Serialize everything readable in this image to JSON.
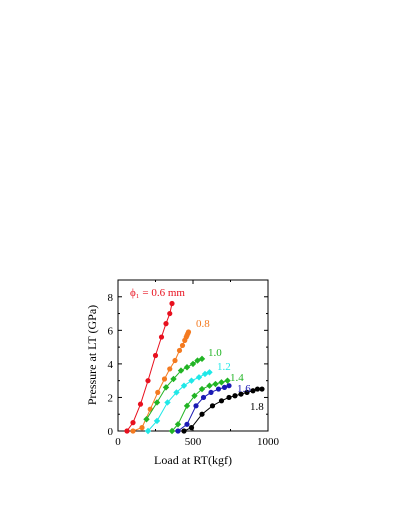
{
  "chart_data": {
    "type": "scatter",
    "xlabel": "Load at RT(kgf)",
    "ylabel": "Pressure at LT (GPa)",
    "xlim": [
      0,
      1000
    ],
    "ylim": [
      0,
      9
    ],
    "x_ticks": [
      "0",
      "500",
      "1000"
    ],
    "y_ticks": [
      "0",
      "2",
      "4",
      "6",
      "8"
    ],
    "grid": false,
    "legend": "inline labels at series ends",
    "series": [
      {
        "name": "ϕ₁ = 0.6 mm",
        "color": "#e8101e",
        "marker": "circle",
        "x": [
          60,
          100,
          150,
          200,
          250,
          290,
          320,
          345,
          360
        ],
        "y": [
          0.0,
          0.5,
          1.6,
          3.0,
          4.5,
          5.6,
          6.4,
          7.0,
          7.6
        ]
      },
      {
        "name": "0.8",
        "color": "#f47a20",
        "marker": "circle",
        "x": [
          100,
          160,
          215,
          265,
          310,
          345,
          380,
          410,
          430,
          445,
          455,
          460,
          465,
          470
        ],
        "y": [
          0.0,
          0.2,
          1.3,
          2.3,
          3.1,
          3.7,
          4.2,
          4.8,
          5.1,
          5.4,
          5.6,
          5.7,
          5.8,
          5.9
        ]
      },
      {
        "name": "1.0",
        "color": "#21b424",
        "marker": "diamond",
        "x": [
          190,
          260,
          320,
          370,
          420,
          460,
          500,
          530,
          560
        ],
        "y": [
          0.7,
          1.7,
          2.6,
          3.1,
          3.6,
          3.8,
          4.0,
          4.2,
          4.3
        ]
      },
      {
        "name": "1.2",
        "color": "#1fe8e8",
        "marker": "diamond",
        "x": [
          200,
          260,
          330,
          390,
          440,
          490,
          540,
          580,
          610
        ],
        "y": [
          0.0,
          0.6,
          1.7,
          2.3,
          2.7,
          3.0,
          3.2,
          3.4,
          3.5
        ]
      },
      {
        "name": "1.4",
        "color": "#21b424",
        "marker": "diamond",
        "x": [
          360,
          400,
          460,
          510,
          560,
          610,
          650,
          690,
          730
        ],
        "y": [
          0.0,
          0.4,
          1.5,
          2.1,
          2.5,
          2.7,
          2.8,
          2.9,
          3.0
        ]
      },
      {
        "name": "1.6",
        "color": "#1a1ab4",
        "marker": "circle",
        "x": [
          400,
          460,
          520,
          570,
          620,
          670,
          710,
          740
        ],
        "y": [
          0.0,
          0.4,
          1.5,
          2.0,
          2.3,
          2.5,
          2.6,
          2.7
        ]
      },
      {
        "name": "1.8",
        "color": "#000000",
        "marker": "circle",
        "x": [
          440,
          490,
          560,
          630,
          690,
          740,
          780,
          820,
          860,
          900,
          930,
          960
        ],
        "y": [
          0.0,
          0.2,
          1.0,
          1.5,
          1.8,
          2.0,
          2.1,
          2.2,
          2.3,
          2.4,
          2.5,
          2.5
        ]
      }
    ]
  }
}
